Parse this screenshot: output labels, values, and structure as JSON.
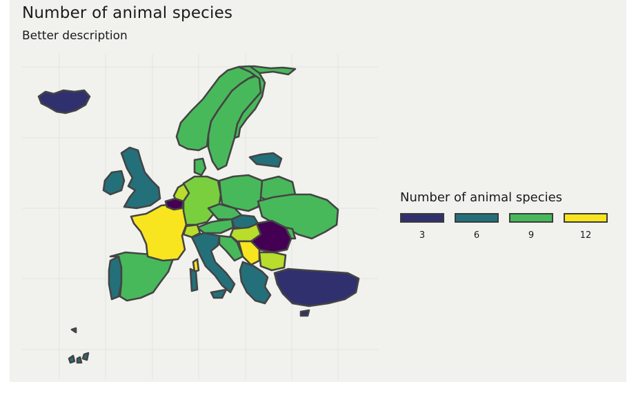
{
  "title": "Number of animal species",
  "subtitle": "Better description",
  "legend": {
    "title": "Number of animal species",
    "keys": [
      {
        "label": "3",
        "color": "#31306e"
      },
      {
        "label": "6",
        "color": "#23707a"
      },
      {
        "label": "9",
        "color": "#48b95a"
      },
      {
        "label": "12",
        "color": "#f9e51f"
      }
    ]
  },
  "palette": {
    "min": "#440154",
    "c3": "#31306e",
    "c6": "#23707a",
    "c9": "#48b95a",
    "c10": "#7acf3f",
    "c11": "#b8dd2c",
    "c12": "#f9e51f",
    "border": "#444444",
    "grid": "#e4e4df",
    "background": "#f1f1ee"
  }
}
